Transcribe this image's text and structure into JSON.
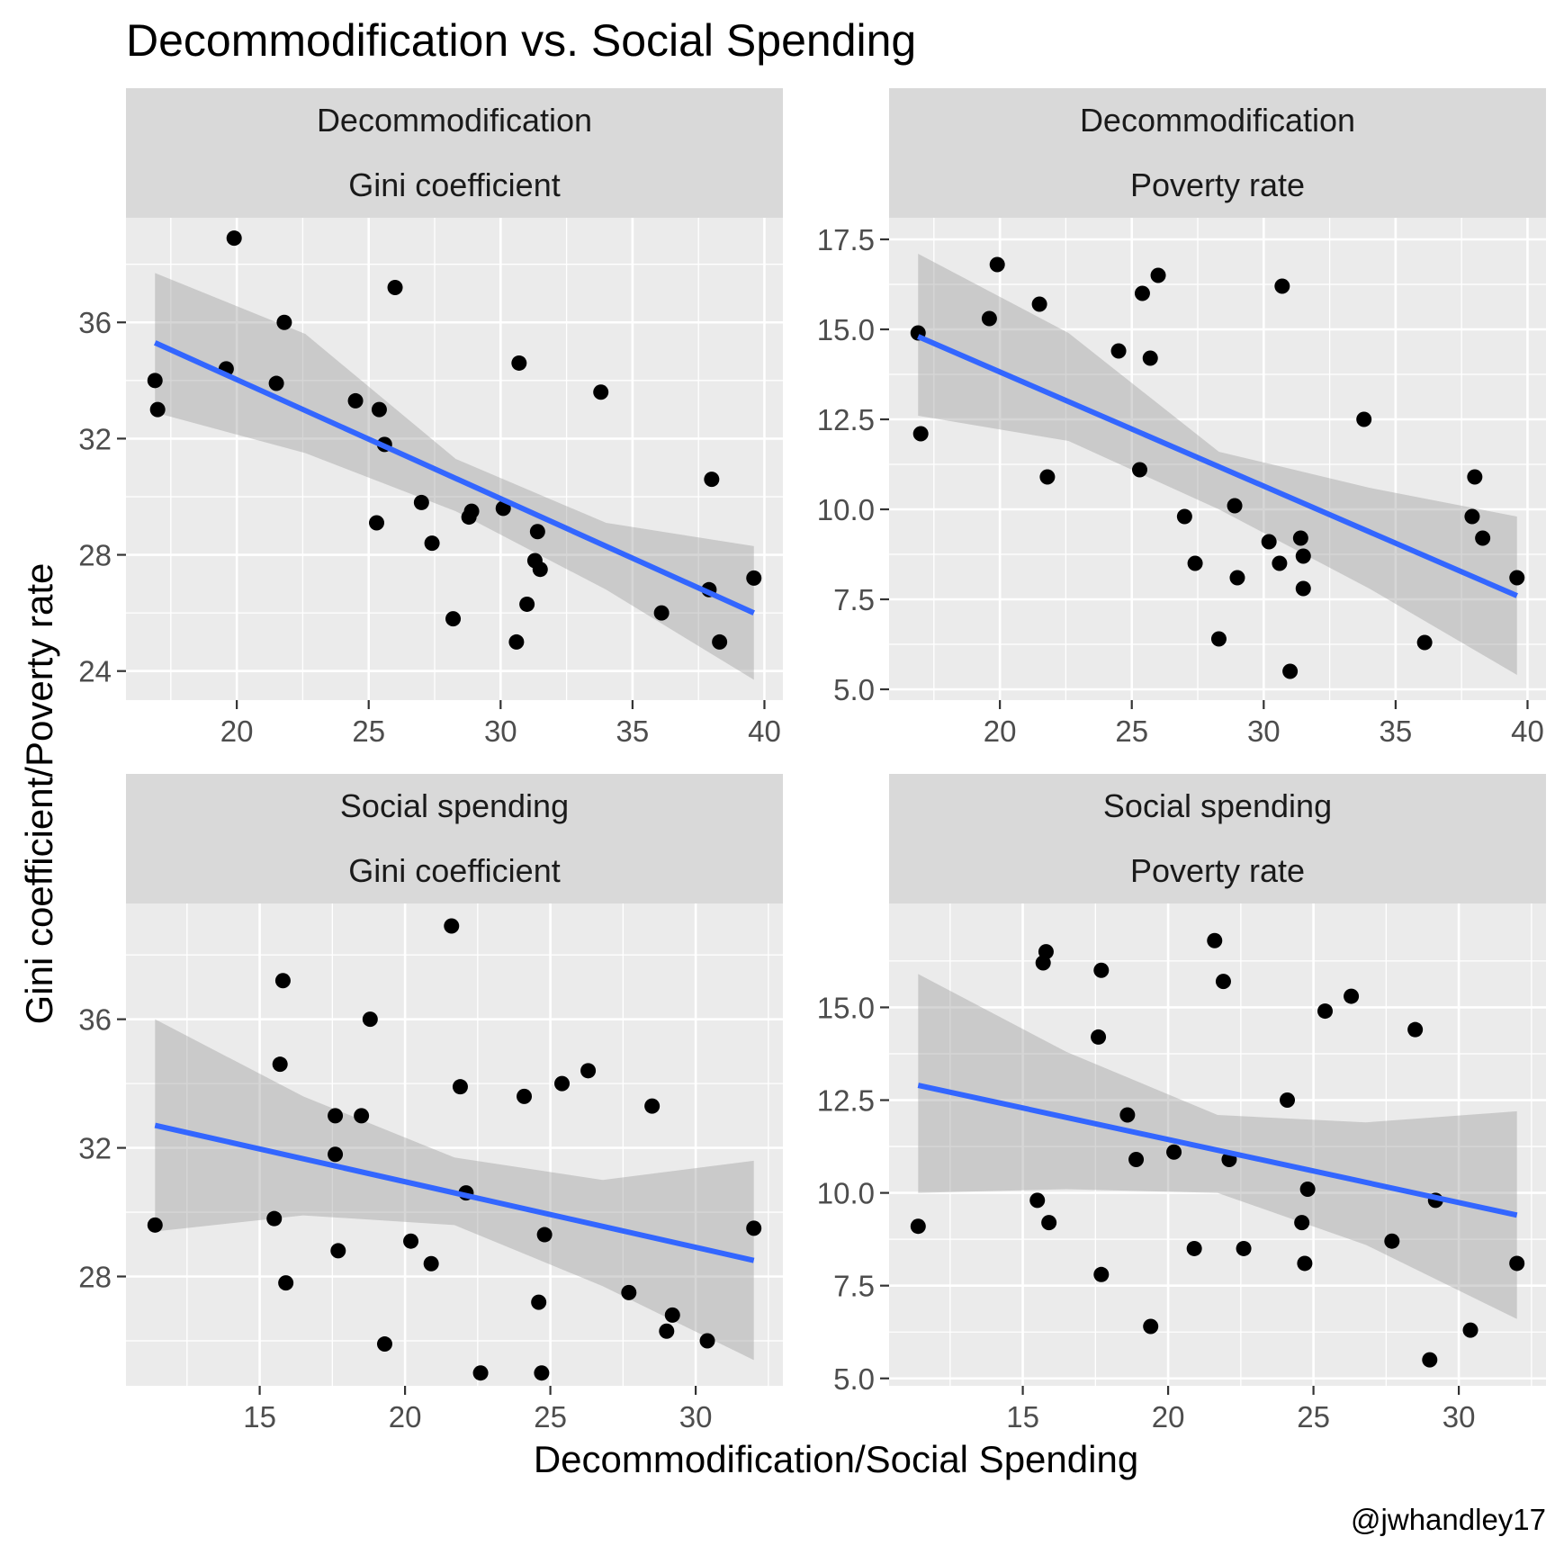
{
  "title": "Decommodification vs. Social Spending",
  "xlabel": "Decommodification/Social Spending",
  "ylabel": "Gini coefficient/Poverty rate",
  "caption": "@jwhandley17",
  "colors": {
    "points": "#000000",
    "fit_line": "#3366ff",
    "ribbon": "#999999",
    "panel_bg": "#ebebeb",
    "strip_bg": "#d9d9d9"
  },
  "chart_data": [
    {
      "type": "scatter",
      "strip": [
        "Decommodification",
        "Gini coefficient"
      ],
      "xlim": [
        15.8,
        40.7
      ],
      "ylim": [
        23.0,
        39.6
      ],
      "xticks": [
        20,
        25,
        30,
        35,
        40
      ],
      "yticks": [
        24,
        28,
        32,
        36
      ],
      "x": [
        16.9,
        17.0,
        19.6,
        19.9,
        21.5,
        21.8,
        24.5,
        25.3,
        25.4,
        25.6,
        26.0,
        27.0,
        27.4,
        28.2,
        28.8,
        28.9,
        30.1,
        30.6,
        30.7,
        31.0,
        31.3,
        31.4,
        31.5,
        33.8,
        36.1,
        37.9,
        38.0,
        38.3,
        39.6
      ],
      "y": [
        34.0,
        33.0,
        34.4,
        38.9,
        33.9,
        36.0,
        33.3,
        29.1,
        33.0,
        31.8,
        37.2,
        29.8,
        28.4,
        25.8,
        29.3,
        29.5,
        29.6,
        25.0,
        34.6,
        26.3,
        27.8,
        28.8,
        27.5,
        33.6,
        26.0,
        26.8,
        30.6,
        25.0,
        27.2
      ],
      "fit": {
        "x": [
          16.9,
          39.6
        ],
        "y": [
          35.3,
          26.0
        ]
      },
      "ribbon": {
        "x": [
          16.9,
          22.6,
          28.3,
          34.0,
          39.6
        ],
        "lower": [
          32.9,
          31.5,
          29.5,
          26.8,
          23.7
        ],
        "upper": [
          37.7,
          35.6,
          31.3,
          29.1,
          28.3
        ]
      }
    },
    {
      "type": "scatter",
      "strip": [
        "Decommodification",
        "Poverty rate"
      ],
      "xlim": [
        15.8,
        40.7
      ],
      "ylim": [
        4.7,
        18.1
      ],
      "xticks": [
        20,
        25,
        30,
        35,
        40
      ],
      "yticks": [
        5.0,
        7.5,
        10.0,
        12.5,
        15.0,
        17.5
      ],
      "ytick_labels": [
        "5.0",
        "7.5",
        "10.0",
        "12.5",
        "15.0",
        "17.5"
      ],
      "x": [
        16.9,
        17.0,
        19.6,
        19.9,
        21.5,
        21.8,
        24.5,
        25.3,
        25.4,
        25.7,
        26.0,
        27.0,
        27.4,
        28.3,
        28.9,
        29.0,
        30.2,
        30.6,
        30.7,
        31.0,
        31.4,
        31.5,
        31.5,
        33.8,
        36.1,
        37.9,
        38.0,
        38.3,
        39.6
      ],
      "y": [
        14.9,
        12.1,
        15.3,
        16.8,
        15.7,
        10.9,
        14.4,
        11.1,
        16.0,
        14.2,
        16.5,
        9.8,
        8.5,
        6.4,
        10.1,
        8.1,
        9.1,
        8.5,
        16.2,
        5.5,
        9.2,
        7.8,
        8.7,
        12.5,
        6.3,
        9.8,
        10.9,
        9.2,
        8.1
      ],
      "fit": {
        "x": [
          16.9,
          39.6
        ],
        "y": [
          14.8,
          7.6
        ]
      },
      "ribbon": {
        "x": [
          16.9,
          22.6,
          28.3,
          34.0,
          39.6
        ],
        "lower": [
          12.6,
          11.9,
          10.0,
          7.8,
          5.4
        ],
        "upper": [
          17.1,
          14.9,
          11.6,
          10.6,
          9.8
        ]
      }
    },
    {
      "type": "scatter",
      "strip": [
        "Social spending",
        "Gini coefficient"
      ],
      "xlim": [
        10.4,
        33.0
      ],
      "ylim": [
        24.6,
        39.6
      ],
      "xticks": [
        15,
        20,
        25,
        30
      ],
      "yticks": [
        28,
        32,
        36
      ],
      "x": [
        11.4,
        15.5,
        15.7,
        15.8,
        15.9,
        17.6,
        17.6,
        17.7,
        18.5,
        18.8,
        19.3,
        20.2,
        20.9,
        21.6,
        21.9,
        22.1,
        22.6,
        24.1,
        24.6,
        24.7,
        24.8,
        25.4,
        26.3,
        27.7,
        28.5,
        29.0,
        29.2,
        30.4,
        32.0
      ],
      "y": [
        29.6,
        29.8,
        34.6,
        37.2,
        27.8,
        33.0,
        31.8,
        28.8,
        33.0,
        36.0,
        25.9,
        29.1,
        28.4,
        38.9,
        33.9,
        30.6,
        25.0,
        33.6,
        27.2,
        25.0,
        29.3,
        34.0,
        34.4,
        27.5,
        33.3,
        26.3,
        26.8,
        26.0,
        29.5
      ],
      "fit": {
        "x": [
          11.4,
          32.0
        ],
        "y": [
          32.7,
          28.5
        ]
      },
      "ribbon": {
        "x": [
          11.4,
          16.5,
          21.7,
          26.8,
          32.0
        ],
        "lower": [
          29.4,
          29.9,
          29.6,
          27.7,
          25.4
        ],
        "upper": [
          36.0,
          33.6,
          31.7,
          31.0,
          31.6
        ]
      }
    },
    {
      "type": "scatter",
      "strip": [
        "Social spending",
        "Poverty rate"
      ],
      "xlim": [
        10.4,
        33.0
      ],
      "ylim": [
        4.8,
        17.8
      ],
      "xticks": [
        15,
        20,
        25,
        30
      ],
      "yticks": [
        5.0,
        7.5,
        10.0,
        12.5,
        15.0
      ],
      "ytick_labels": [
        "5.0",
        "7.5",
        "10.0",
        "12.5",
        "15.0"
      ],
      "x": [
        11.4,
        15.5,
        15.7,
        15.8,
        15.9,
        17.6,
        17.7,
        17.7,
        18.6,
        18.9,
        19.4,
        20.2,
        20.9,
        21.6,
        21.9,
        22.1,
        22.6,
        24.1,
        24.6,
        24.7,
        24.8,
        25.4,
        26.3,
        27.7,
        28.5,
        29.0,
        29.2,
        30.4,
        32.0
      ],
      "y": [
        9.1,
        9.8,
        16.2,
        16.5,
        9.2,
        14.2,
        16.0,
        7.8,
        12.1,
        10.9,
        6.4,
        11.1,
        8.5,
        16.8,
        15.7,
        10.9,
        8.5,
        12.5,
        9.2,
        8.1,
        10.1,
        14.9,
        15.3,
        8.7,
        14.4,
        5.5,
        9.8,
        6.3,
        8.1
      ],
      "fit": {
        "x": [
          11.4,
          32.0
        ],
        "y": [
          12.9,
          9.4
        ]
      },
      "ribbon": {
        "x": [
          11.4,
          16.5,
          21.7,
          26.8,
          32.0
        ],
        "lower": [
          10.0,
          10.1,
          10.0,
          8.6,
          6.6
        ],
        "upper": [
          15.9,
          13.8,
          12.1,
          11.9,
          12.2
        ]
      }
    }
  ]
}
